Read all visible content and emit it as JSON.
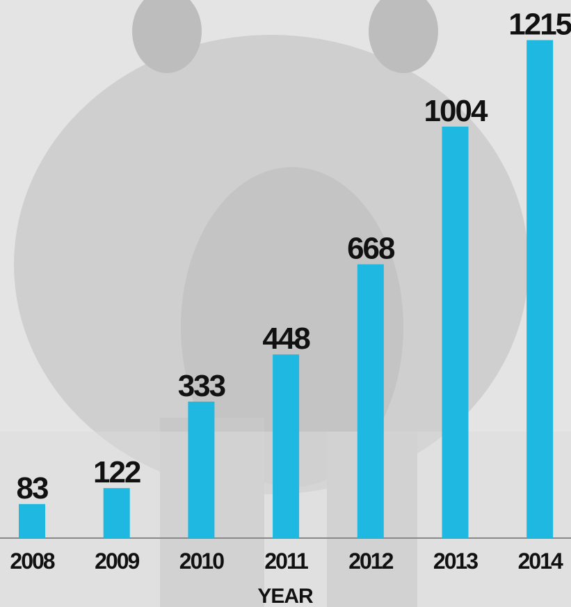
{
  "chart_data": {
    "type": "bar",
    "x_label": "YEAR",
    "categories": [
      "2008",
      "2009",
      "2010",
      "2011",
      "2012",
      "2013",
      "2014"
    ],
    "values": [
      83,
      122,
      333,
      448,
      668,
      1004,
      1215
    ],
    "color": "#1fb8e0",
    "ylim": [
      0,
      1250
    ]
  }
}
